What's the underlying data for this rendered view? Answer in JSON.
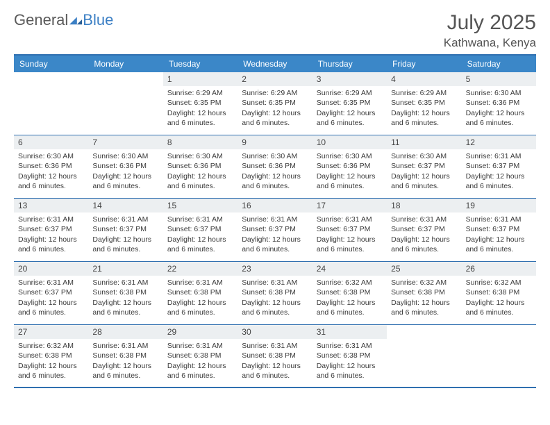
{
  "logo": {
    "textA": "General",
    "textB": "Blue"
  },
  "title": {
    "month": "July 2025",
    "location": "Kathwana, Kenya"
  },
  "colors": {
    "headerbar": "#3b87c8",
    "rule": "#2f6fb0",
    "daynumBg": "#eceff1",
    "text": "#3a3a3a",
    "logoGray": "#5a5a5a",
    "logoBlue": "#3b7fc4"
  },
  "dayHeaders": [
    "Sunday",
    "Monday",
    "Tuesday",
    "Wednesday",
    "Thursday",
    "Friday",
    "Saturday"
  ],
  "weeks": [
    [
      null,
      null,
      {
        "n": "1",
        "sr": "6:29 AM",
        "ss": "6:35 PM",
        "dl": "12 hours and 6 minutes."
      },
      {
        "n": "2",
        "sr": "6:29 AM",
        "ss": "6:35 PM",
        "dl": "12 hours and 6 minutes."
      },
      {
        "n": "3",
        "sr": "6:29 AM",
        "ss": "6:35 PM",
        "dl": "12 hours and 6 minutes."
      },
      {
        "n": "4",
        "sr": "6:29 AM",
        "ss": "6:35 PM",
        "dl": "12 hours and 6 minutes."
      },
      {
        "n": "5",
        "sr": "6:30 AM",
        "ss": "6:36 PM",
        "dl": "12 hours and 6 minutes."
      }
    ],
    [
      {
        "n": "6",
        "sr": "6:30 AM",
        "ss": "6:36 PM",
        "dl": "12 hours and 6 minutes."
      },
      {
        "n": "7",
        "sr": "6:30 AM",
        "ss": "6:36 PM",
        "dl": "12 hours and 6 minutes."
      },
      {
        "n": "8",
        "sr": "6:30 AM",
        "ss": "6:36 PM",
        "dl": "12 hours and 6 minutes."
      },
      {
        "n": "9",
        "sr": "6:30 AM",
        "ss": "6:36 PM",
        "dl": "12 hours and 6 minutes."
      },
      {
        "n": "10",
        "sr": "6:30 AM",
        "ss": "6:36 PM",
        "dl": "12 hours and 6 minutes."
      },
      {
        "n": "11",
        "sr": "6:30 AM",
        "ss": "6:37 PM",
        "dl": "12 hours and 6 minutes."
      },
      {
        "n": "12",
        "sr": "6:31 AM",
        "ss": "6:37 PM",
        "dl": "12 hours and 6 minutes."
      }
    ],
    [
      {
        "n": "13",
        "sr": "6:31 AM",
        "ss": "6:37 PM",
        "dl": "12 hours and 6 minutes."
      },
      {
        "n": "14",
        "sr": "6:31 AM",
        "ss": "6:37 PM",
        "dl": "12 hours and 6 minutes."
      },
      {
        "n": "15",
        "sr": "6:31 AM",
        "ss": "6:37 PM",
        "dl": "12 hours and 6 minutes."
      },
      {
        "n": "16",
        "sr": "6:31 AM",
        "ss": "6:37 PM",
        "dl": "12 hours and 6 minutes."
      },
      {
        "n": "17",
        "sr": "6:31 AM",
        "ss": "6:37 PM",
        "dl": "12 hours and 6 minutes."
      },
      {
        "n": "18",
        "sr": "6:31 AM",
        "ss": "6:37 PM",
        "dl": "12 hours and 6 minutes."
      },
      {
        "n": "19",
        "sr": "6:31 AM",
        "ss": "6:37 PM",
        "dl": "12 hours and 6 minutes."
      }
    ],
    [
      {
        "n": "20",
        "sr": "6:31 AM",
        "ss": "6:37 PM",
        "dl": "12 hours and 6 minutes."
      },
      {
        "n": "21",
        "sr": "6:31 AM",
        "ss": "6:38 PM",
        "dl": "12 hours and 6 minutes."
      },
      {
        "n": "22",
        "sr": "6:31 AM",
        "ss": "6:38 PM",
        "dl": "12 hours and 6 minutes."
      },
      {
        "n": "23",
        "sr": "6:31 AM",
        "ss": "6:38 PM",
        "dl": "12 hours and 6 minutes."
      },
      {
        "n": "24",
        "sr": "6:32 AM",
        "ss": "6:38 PM",
        "dl": "12 hours and 6 minutes."
      },
      {
        "n": "25",
        "sr": "6:32 AM",
        "ss": "6:38 PM",
        "dl": "12 hours and 6 minutes."
      },
      {
        "n": "26",
        "sr": "6:32 AM",
        "ss": "6:38 PM",
        "dl": "12 hours and 6 minutes."
      }
    ],
    [
      {
        "n": "27",
        "sr": "6:32 AM",
        "ss": "6:38 PM",
        "dl": "12 hours and 6 minutes."
      },
      {
        "n": "28",
        "sr": "6:31 AM",
        "ss": "6:38 PM",
        "dl": "12 hours and 6 minutes."
      },
      {
        "n": "29",
        "sr": "6:31 AM",
        "ss": "6:38 PM",
        "dl": "12 hours and 6 minutes."
      },
      {
        "n": "30",
        "sr": "6:31 AM",
        "ss": "6:38 PM",
        "dl": "12 hours and 6 minutes."
      },
      {
        "n": "31",
        "sr": "6:31 AM",
        "ss": "6:38 PM",
        "dl": "12 hours and 6 minutes."
      },
      null,
      null
    ]
  ],
  "labels": {
    "sunrise": "Sunrise:",
    "sunset": "Sunset:",
    "daylight": "Daylight:"
  }
}
